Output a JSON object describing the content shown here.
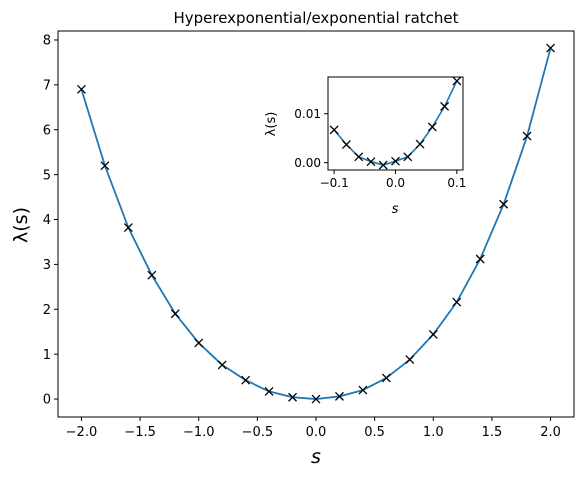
{
  "chart_data": [
    {
      "type": "line",
      "title": "Hyperexponential/exponential ratchet",
      "xlabel": "s",
      "ylabel": "λ(s)",
      "xlim": [
        -2.2,
        2.2
      ],
      "ylim": [
        -0.4,
        8.2
      ],
      "xticks": [
        -2.0,
        -1.5,
        -1.0,
        -0.5,
        0.0,
        0.5,
        1.0,
        1.5,
        2.0
      ],
      "xtick_labels": [
        "−2.0",
        "−1.5",
        "−1.0",
        "−0.5",
        "0.0",
        "0.5",
        "1.0",
        "1.5",
        "2.0"
      ],
      "yticks": [
        0,
        1,
        2,
        3,
        4,
        5,
        6,
        7,
        8
      ],
      "ytick_labels": [
        "0",
        "1",
        "2",
        "3",
        "4",
        "5",
        "6",
        "7",
        "8"
      ],
      "line_color": "#1f77b4",
      "marker_color": "#000000",
      "series": [
        {
          "style": "line",
          "x": [
            -2.0,
            -1.8,
            -1.6,
            -1.4,
            -1.2,
            -1.0,
            -0.8,
            -0.6,
            -0.4,
            -0.2,
            0.0,
            0.2,
            0.4,
            0.6,
            0.8,
            1.0,
            1.2,
            1.4,
            1.6,
            1.8,
            2.0
          ],
          "y": [
            6.9,
            5.2,
            3.82,
            2.76,
            1.9,
            1.25,
            0.76,
            0.42,
            0.17,
            0.04,
            0.0,
            0.06,
            0.2,
            0.47,
            0.88,
            1.44,
            2.16,
            3.12,
            4.34,
            5.86,
            7.82
          ]
        },
        {
          "style": "markers",
          "marker": "x",
          "x": [
            -2.0,
            -1.8,
            -1.6,
            -1.4,
            -1.2,
            -1.0,
            -0.8,
            -0.6,
            -0.4,
            -0.2,
            0.0,
            0.2,
            0.4,
            0.6,
            0.8,
            1.0,
            1.2,
            1.4,
            1.6,
            1.8,
            2.0
          ],
          "y": [
            6.9,
            5.2,
            3.82,
            2.76,
            1.9,
            1.25,
            0.76,
            0.42,
            0.17,
            0.04,
            0.0,
            0.06,
            0.2,
            0.47,
            0.88,
            1.44,
            2.16,
            3.12,
            4.34,
            5.86,
            7.82
          ]
        }
      ],
      "grid": false,
      "legend": "none"
    },
    {
      "type": "line",
      "title": "",
      "xlabel": "s",
      "ylabel": "λ(s)",
      "xlim": [
        -0.11,
        0.11
      ],
      "ylim": [
        -0.0015,
        0.0175
      ],
      "xticks": [
        -0.1,
        0.0,
        0.1
      ],
      "xtick_labels": [
        "−0.1",
        "0.0",
        "0.1"
      ],
      "yticks": [
        0.0,
        0.01
      ],
      "ytick_labels": [
        "0.00",
        "0.01"
      ],
      "line_color": "#1f77b4",
      "marker_color": "#000000",
      "series": [
        {
          "style": "line",
          "x": [
            -0.1,
            -0.08,
            -0.06,
            -0.04,
            -0.02,
            0.0,
            0.02,
            0.04,
            0.06,
            0.08,
            0.1
          ],
          "y": [
            0.0067,
            0.0037,
            0.0012,
            0.0002,
            -0.0005,
            0.0003,
            0.0012,
            0.0038,
            0.0073,
            0.0115,
            0.0167
          ]
        },
        {
          "style": "markers",
          "marker": "x",
          "x": [
            -0.1,
            -0.08,
            -0.06,
            -0.04,
            -0.02,
            0.0,
            0.02,
            0.04,
            0.06,
            0.08,
            0.1
          ],
          "y": [
            0.0067,
            0.0037,
            0.0012,
            0.0002,
            -0.0005,
            0.0003,
            0.0012,
            0.0038,
            0.0073,
            0.0115,
            0.0167
          ]
        }
      ],
      "grid": false,
      "legend": "none"
    }
  ]
}
